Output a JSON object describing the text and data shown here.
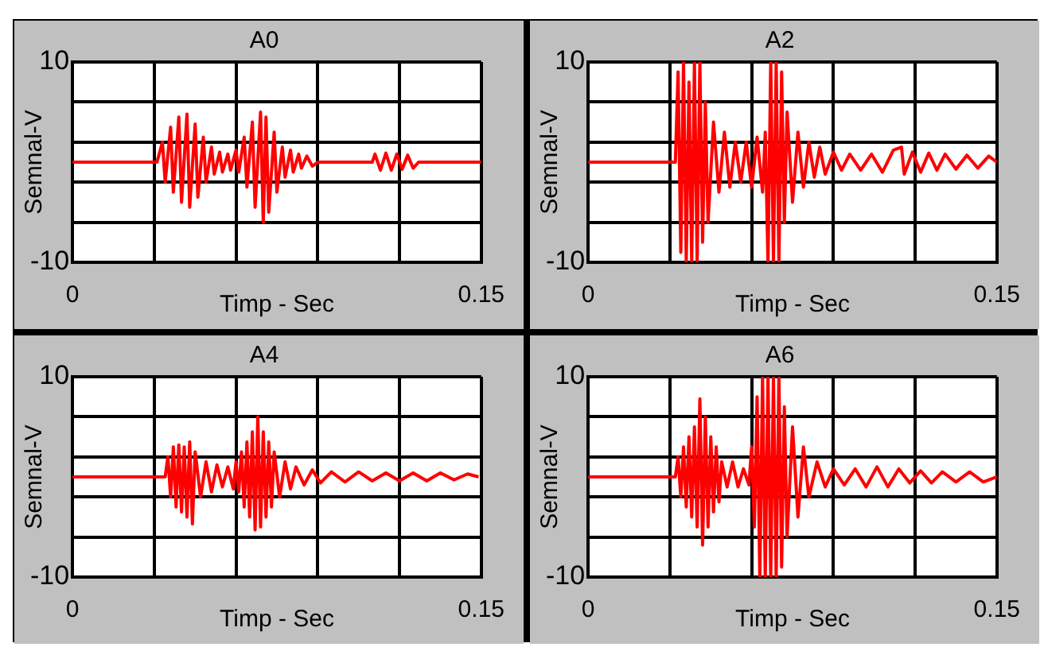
{
  "chart_data": [
    {
      "type": "line",
      "title": "A0",
      "xlabel": "Timp - Sec",
      "ylabel": "Semnal-V",
      "xlim": [
        0,
        0.15
      ],
      "ylim": [
        -10,
        10
      ],
      "xticks": [
        {
          "value": 0,
          "label": "0"
        },
        {
          "value": 0.03,
          "label": null
        },
        {
          "value": 0.06,
          "label": null
        },
        {
          "value": 0.09,
          "label": null
        },
        {
          "value": 0.12,
          "label": null
        },
        {
          "value": 0.15,
          "label": "0.15"
        }
      ],
      "yticks": [
        {
          "value": -10,
          "label": "-10"
        },
        {
          "value": -6,
          "label": null
        },
        {
          "value": -2,
          "label": null
        },
        {
          "value": 2,
          "label": null
        },
        {
          "value": 6,
          "label": null
        },
        {
          "value": 10,
          "label": "10"
        }
      ],
      "grid": true,
      "marker": "none",
      "line_style": "solid",
      "series": [
        {
          "color": "#ff0000",
          "x": [
            0,
            0.031,
            0.033,
            0.034,
            0.036,
            0.037,
            0.039,
            0.04,
            0.042,
            0.043,
            0.045,
            0.046,
            0.048,
            0.049,
            0.051,
            0.052,
            0.054,
            0.055,
            0.057,
            0.058,
            0.06,
            0.061,
            0.063,
            0.064,
            0.066,
            0.067,
            0.069,
            0.07,
            0.071,
            0.072,
            0.074,
            0.075,
            0.077,
            0.078,
            0.08,
            0.081,
            0.083,
            0.084,
            0.086,
            0.088,
            0.09,
            0.11,
            0.111,
            0.113,
            0.115,
            0.117,
            0.119,
            0.121,
            0.123,
            0.125,
            0.127,
            0.15
          ],
          "values": [
            0,
            0,
            2,
            -2,
            3.5,
            -3,
            4.5,
            -4,
            4.8,
            -4.5,
            3.8,
            -3.5,
            2.5,
            -2,
            1.5,
            -1.2,
            1,
            -1,
            0.8,
            -0.8,
            1.2,
            -1,
            2.5,
            -2.5,
            4,
            -4.5,
            5,
            -6,
            4.5,
            -5,
            3,
            -3,
            1.5,
            -1.5,
            1.2,
            -1,
            0.8,
            -0.6,
            0.6,
            -0.4,
            0,
            0,
            0.8,
            -0.8,
            0.9,
            -0.8,
            0.8,
            -0.7,
            0.7,
            -0.6,
            0,
            0
          ]
        }
      ]
    },
    {
      "type": "line",
      "title": "A2",
      "xlabel": "Timp - Sec",
      "ylabel": "Semnal-V",
      "xlim": [
        0,
        0.15
      ],
      "ylim": [
        -10,
        10
      ],
      "xticks": [
        {
          "value": 0,
          "label": "0"
        },
        {
          "value": 0.03,
          "label": null
        },
        {
          "value": 0.06,
          "label": null
        },
        {
          "value": 0.09,
          "label": null
        },
        {
          "value": 0.12,
          "label": null
        },
        {
          "value": 0.15,
          "label": "0.15"
        }
      ],
      "yticks": [
        {
          "value": -10,
          "label": "-10"
        },
        {
          "value": -6,
          "label": null
        },
        {
          "value": -2,
          "label": null
        },
        {
          "value": 2,
          "label": null
        },
        {
          "value": 6,
          "label": null
        },
        {
          "value": 10,
          "label": "10"
        }
      ],
      "grid": true,
      "marker": "none",
      "line_style": "solid",
      "series": [
        {
          "color": "#ff0000",
          "x": [
            0,
            0.032,
            0.033,
            0.034,
            0.035,
            0.036,
            0.037,
            0.038,
            0.039,
            0.04,
            0.041,
            0.042,
            0.043,
            0.044,
            0.046,
            0.048,
            0.05,
            0.052,
            0.054,
            0.056,
            0.058,
            0.06,
            0.062,
            0.064,
            0.065,
            0.066,
            0.067,
            0.068,
            0.069,
            0.07,
            0.071,
            0.072,
            0.073,
            0.075,
            0.077,
            0.079,
            0.081,
            0.083,
            0.085,
            0.087,
            0.09,
            0.093,
            0.096,
            0.1,
            0.104,
            0.108,
            0.112,
            0.115,
            0.116,
            0.119,
            0.122,
            0.125,
            0.128,
            0.131,
            0.135,
            0.139,
            0.143,
            0.147,
            0.15
          ],
          "values": [
            0,
            0,
            9,
            -9,
            10,
            -10,
            8,
            -10,
            10,
            -10,
            10,
            -8,
            6,
            -6,
            4,
            -3,
            3,
            -2.5,
            2,
            -2,
            2,
            -2.5,
            2.5,
            -3,
            3,
            -10,
            10,
            -10,
            10,
            -10,
            9,
            -6,
            5,
            -4,
            3,
            -2.5,
            2,
            -1.5,
            1.5,
            -1.2,
            1,
            -0.8,
            0.8,
            -0.8,
            0.8,
            -1,
            1.2,
            1.5,
            -1.2,
            1,
            -1,
            0.9,
            -0.8,
            0.8,
            -0.7,
            0.7,
            -0.6,
            0.6,
            0
          ]
        }
      ]
    },
    {
      "type": "line",
      "title": "A4",
      "xlabel": "Timp - Sec",
      "ylabel": "Semnal-V",
      "xlim": [
        0,
        0.15
      ],
      "ylim": [
        -10,
        10
      ],
      "xticks": [
        {
          "value": 0,
          "label": "0"
        },
        {
          "value": 0.03,
          "label": null
        },
        {
          "value": 0.06,
          "label": null
        },
        {
          "value": 0.09,
          "label": null
        },
        {
          "value": 0.12,
          "label": null
        },
        {
          "value": 0.15,
          "label": "0.15"
        }
      ],
      "yticks": [
        {
          "value": -10,
          "label": "-10"
        },
        {
          "value": -6,
          "label": null
        },
        {
          "value": -2,
          "label": null
        },
        {
          "value": 2,
          "label": null
        },
        {
          "value": 6,
          "label": null
        },
        {
          "value": 10,
          "label": "10"
        }
      ],
      "grid": true,
      "marker": "none",
      "line_style": "solid",
      "series": [
        {
          "color": "#ff0000",
          "x": [
            0,
            0.034,
            0.035,
            0.036,
            0.037,
            0.038,
            0.039,
            0.04,
            0.041,
            0.042,
            0.043,
            0.044,
            0.045,
            0.047,
            0.049,
            0.051,
            0.053,
            0.055,
            0.057,
            0.059,
            0.06,
            0.061,
            0.062,
            0.063,
            0.064,
            0.065,
            0.066,
            0.067,
            0.068,
            0.069,
            0.07,
            0.071,
            0.072,
            0.073,
            0.074,
            0.076,
            0.078,
            0.08,
            0.082,
            0.085,
            0.088,
            0.091,
            0.095,
            0.1,
            0.105,
            0.11,
            0.115,
            0.12,
            0.125,
            0.13,
            0.135,
            0.14,
            0.145,
            0.149
          ],
          "values": [
            0,
            0,
            2,
            -2,
            3,
            -3,
            3.2,
            -3.5,
            3,
            -4,
            3.5,
            -4.7,
            2.5,
            -2,
            1.5,
            -1.5,
            1.2,
            -1,
            1,
            -1.2,
            1.5,
            -1.5,
            2.5,
            -3,
            3.5,
            -4,
            4.5,
            -5.3,
            6,
            -5,
            4.5,
            -4,
            3.5,
            -3,
            2.5,
            -2,
            1.5,
            -1.2,
            1,
            -0.8,
            0.7,
            -0.6,
            0.5,
            -0.5,
            0.5,
            -0.4,
            0.4,
            -0.4,
            0.4,
            -0.4,
            0.4,
            -0.3,
            0.3,
            0
          ]
        }
      ]
    },
    {
      "type": "line",
      "title": "A6",
      "xlabel": "Timp - Sec",
      "ylabel": "Semnal-V",
      "xlim": [
        0,
        0.15
      ],
      "ylim": [
        -10,
        10
      ],
      "xticks": [
        {
          "value": 0,
          "label": "0"
        },
        {
          "value": 0.03,
          "label": null
        },
        {
          "value": 0.06,
          "label": null
        },
        {
          "value": 0.09,
          "label": null
        },
        {
          "value": 0.12,
          "label": null
        },
        {
          "value": 0.15,
          "label": "0.15"
        }
      ],
      "yticks": [
        {
          "value": -10,
          "label": "-10"
        },
        {
          "value": -6,
          "label": null
        },
        {
          "value": -2,
          "label": null
        },
        {
          "value": 2,
          "label": null
        },
        {
          "value": 6,
          "label": null
        },
        {
          "value": 10,
          "label": "10"
        }
      ],
      "grid": true,
      "marker": "none",
      "line_style": "solid",
      "series": [
        {
          "color": "#ff0000",
          "x": [
            0,
            0.032,
            0.033,
            0.034,
            0.035,
            0.036,
            0.037,
            0.038,
            0.039,
            0.04,
            0.041,
            0.042,
            0.043,
            0.044,
            0.045,
            0.046,
            0.047,
            0.048,
            0.049,
            0.051,
            0.053,
            0.055,
            0.057,
            0.059,
            0.06,
            0.061,
            0.062,
            0.063,
            0.064,
            0.065,
            0.066,
            0.067,
            0.068,
            0.069,
            0.07,
            0.071,
            0.072,
            0.073,
            0.075,
            0.077,
            0.079,
            0.081,
            0.084,
            0.087,
            0.09,
            0.094,
            0.098,
            0.102,
            0.106,
            0.11,
            0.114,
            0.118,
            0.122,
            0.126,
            0.13,
            0.135,
            0.14,
            0.145,
            0.15
          ],
          "values": [
            0,
            0,
            2,
            -2,
            3,
            -3,
            4,
            -4,
            5,
            -5,
            7.8,
            -6.8,
            6,
            -5,
            4,
            -3.5,
            3,
            -2.5,
            1.5,
            -1,
            1.5,
            -1,
            0.8,
            -0.8,
            3,
            -5,
            8,
            -10,
            10,
            -10,
            10,
            -10,
            10,
            -10,
            10,
            -9,
            7,
            -6,
            5,
            -4,
            3,
            -2,
            1.5,
            -1,
            0.8,
            -0.8,
            0.8,
            -1,
            1,
            -1,
            0.8,
            -0.6,
            0.6,
            -0.6,
            0.5,
            -0.5,
            0.5,
            -0.5,
            0
          ]
        }
      ]
    }
  ]
}
